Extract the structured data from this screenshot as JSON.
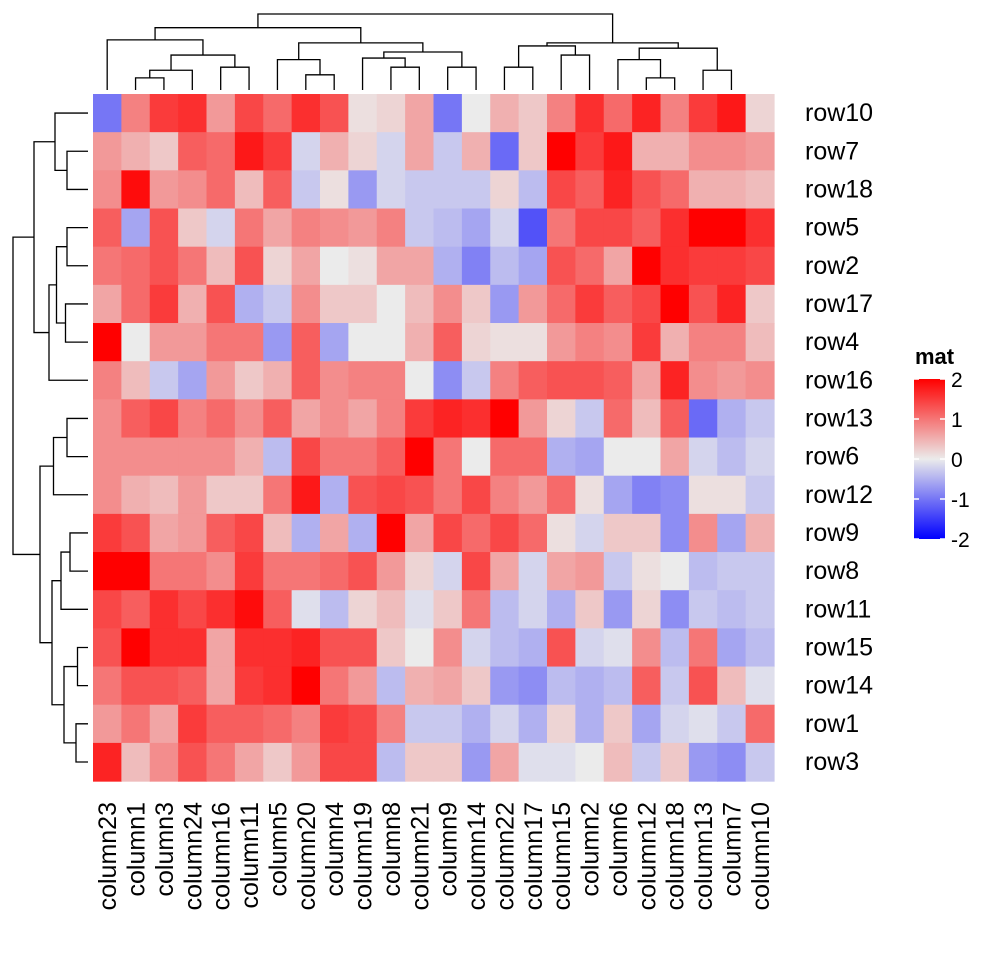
{
  "chart_data": {
    "type": "heatmap",
    "title": "",
    "legend": {
      "title": "mat",
      "ticks": [
        2,
        1,
        0,
        -1,
        -2
      ],
      "tick_labels": [
        "2",
        "1",
        "0",
        "-1",
        "-2"
      ],
      "placement": "right",
      "color_scale": {
        "low": "#0000ff",
        "mid": "#ebebeb",
        "high": "#ff0000",
        "min": -2,
        "mid_value": 0,
        "max": 2
      }
    },
    "columns": [
      "column23",
      "column1",
      "column3",
      "column24",
      "column16",
      "column11",
      "column5",
      "column20",
      "column4",
      "column19",
      "column8",
      "column21",
      "column9",
      "column14",
      "column22",
      "column17",
      "column15",
      "column2",
      "column6",
      "column12",
      "column18",
      "column13",
      "column7",
      "column10"
    ],
    "rows": [
      "row10",
      "row7",
      "row18",
      "row5",
      "row2",
      "row17",
      "row4",
      "row16",
      "row13",
      "row6",
      "row12",
      "row9",
      "row8",
      "row11",
      "row15",
      "row14",
      "row1",
      "row3"
    ],
    "values": [
      [
        -1.0,
        0.9,
        1.5,
        1.6,
        0.7,
        1.4,
        1.1,
        1.6,
        1.3,
        0.1,
        0.2,
        0.6,
        -1.0,
        0.0,
        0.5,
        0.3,
        0.9,
        1.6,
        1.1,
        1.7,
        0.9,
        1.5,
        1.8,
        0.2
      ],
      [
        0.7,
        0.5,
        0.3,
        1.2,
        1.1,
        1.8,
        1.5,
        -0.2,
        0.5,
        0.2,
        -0.2,
        0.6,
        -0.3,
        0.5,
        -1.1,
        0.3,
        2.2,
        1.5,
        1.8,
        0.5,
        0.5,
        0.8,
        0.8,
        0.7
      ],
      [
        0.8,
        1.9,
        0.7,
        0.8,
        1.1,
        0.4,
        1.2,
        -0.3,
        0.1,
        -0.7,
        -0.2,
        -0.3,
        -0.3,
        -0.3,
        0.2,
        -0.4,
        1.4,
        1.2,
        1.7,
        1.3,
        1.1,
        0.5,
        0.5,
        0.4
      ],
      [
        1.2,
        -0.6,
        1.3,
        0.3,
        -0.2,
        1.0,
        0.6,
        0.9,
        0.8,
        0.7,
        0.9,
        -0.3,
        -0.4,
        -0.6,
        -0.2,
        -1.3,
        1.0,
        1.4,
        1.4,
        1.2,
        1.6,
        2.3,
        2.3,
        1.6
      ],
      [
        1.0,
        1.1,
        1.3,
        1.0,
        0.4,
        1.3,
        0.2,
        0.6,
        0.0,
        0.1,
        0.6,
        0.6,
        -0.5,
        -0.9,
        -0.4,
        -0.6,
        1.3,
        1.1,
        0.6,
        2.2,
        1.6,
        1.5,
        1.5,
        1.4
      ],
      [
        0.6,
        1.1,
        1.5,
        0.5,
        1.3,
        -0.5,
        -0.3,
        0.8,
        0.3,
        0.3,
        0.0,
        0.4,
        0.8,
        0.3,
        -0.7,
        0.7,
        1.1,
        1.5,
        1.2,
        1.4,
        2.3,
        1.3,
        1.7,
        0.3
      ],
      [
        2.0,
        0.0,
        0.7,
        0.7,
        1.0,
        1.0,
        -0.7,
        1.2,
        -0.6,
        0.0,
        0.0,
        0.5,
        1.2,
        0.2,
        0.1,
        0.1,
        0.7,
        0.9,
        0.8,
        1.5,
        0.5,
        0.9,
        0.9,
        0.4
      ],
      [
        0.9,
        0.4,
        -0.3,
        -0.6,
        0.7,
        0.3,
        0.5,
        1.2,
        0.8,
        0.9,
        0.9,
        0.0,
        -0.8,
        -0.3,
        0.9,
        1.2,
        1.3,
        1.3,
        1.2,
        0.6,
        1.7,
        0.8,
        0.7,
        0.8
      ],
      [
        0.8,
        1.2,
        1.4,
        0.9,
        1.1,
        0.8,
        1.2,
        0.6,
        0.8,
        0.6,
        0.9,
        1.5,
        1.7,
        1.6,
        2.0,
        0.7,
        0.2,
        -0.3,
        1.1,
        0.4,
        1.2,
        -1.1,
        -0.5,
        -0.3
      ],
      [
        0.8,
        0.8,
        0.8,
        0.8,
        0.8,
        0.5,
        -0.4,
        1.4,
        1.0,
        1.0,
        1.2,
        2.0,
        1.0,
        0.0,
        1.1,
        1.1,
        -0.5,
        -0.6,
        0.0,
        0.0,
        0.6,
        -0.2,
        -0.4,
        -0.2
      ],
      [
        0.8,
        0.5,
        0.4,
        0.7,
        0.3,
        0.3,
        1.0,
        1.8,
        -0.5,
        1.3,
        1.4,
        1.3,
        1.0,
        1.4,
        0.9,
        0.7,
        1.1,
        0.1,
        -0.6,
        -0.9,
        -0.8,
        0.1,
        0.1,
        -0.3
      ],
      [
        1.5,
        1.3,
        0.6,
        0.7,
        1.2,
        1.4,
        0.4,
        -0.5,
        0.6,
        -0.5,
        2.2,
        0.6,
        1.4,
        1.1,
        1.4,
        1.1,
        0.1,
        -0.2,
        0.3,
        0.3,
        -0.8,
        0.8,
        -0.6,
        0.5
      ],
      [
        2.0,
        2.3,
        1.0,
        1.0,
        0.8,
        1.5,
        1.0,
        1.0,
        1.1,
        1.3,
        0.7,
        0.2,
        -0.2,
        1.4,
        0.6,
        -0.2,
        0.6,
        0.7,
        -0.3,
        0.1,
        0.0,
        -0.4,
        -0.3,
        -0.3
      ],
      [
        1.4,
        1.2,
        1.6,
        1.4,
        1.6,
        1.9,
        1.2,
        -0.1,
        -0.4,
        0.2,
        0.4,
        -0.1,
        0.3,
        1.0,
        -0.4,
        -0.2,
        -0.5,
        0.3,
        -0.7,
        0.2,
        -0.8,
        -0.3,
        -0.4,
        -0.3
      ],
      [
        1.3,
        2.0,
        1.6,
        1.6,
        0.6,
        1.6,
        1.6,
        1.7,
        1.3,
        1.3,
        0.3,
        0.0,
        0.8,
        -0.2,
        -0.4,
        -0.5,
        1.3,
        -0.2,
        -0.1,
        0.8,
        -0.4,
        1.0,
        -0.6,
        -0.4
      ],
      [
        1.0,
        1.3,
        1.3,
        1.2,
        0.6,
        1.5,
        1.6,
        2.0,
        1.0,
        0.7,
        -0.4,
        0.5,
        0.6,
        0.3,
        -0.7,
        -0.8,
        -0.4,
        -0.5,
        -0.4,
        1.2,
        -0.3,
        1.3,
        0.4,
        -0.1
      ],
      [
        0.7,
        1.0,
        0.6,
        1.5,
        1.2,
        1.2,
        1.1,
        0.9,
        1.5,
        1.4,
        0.9,
        -0.3,
        -0.3,
        -0.5,
        -0.2,
        -0.5,
        0.2,
        -0.5,
        0.3,
        -0.6,
        -0.2,
        -0.1,
        -0.3,
        1.1
      ],
      [
        1.7,
        0.4,
        0.8,
        1.3,
        1.0,
        0.6,
        0.3,
        0.7,
        1.4,
        1.4,
        -0.4,
        0.3,
        0.3,
        -0.7,
        0.6,
        -0.1,
        -0.1,
        0.0,
        0.4,
        -0.3,
        0.3,
        -0.7,
        -0.8,
        -0.3
      ]
    ],
    "column_dendrogram": {
      "position": "top",
      "nodes": []
    },
    "row_dendrogram": {
      "position": "left",
      "nodes": []
    }
  }
}
